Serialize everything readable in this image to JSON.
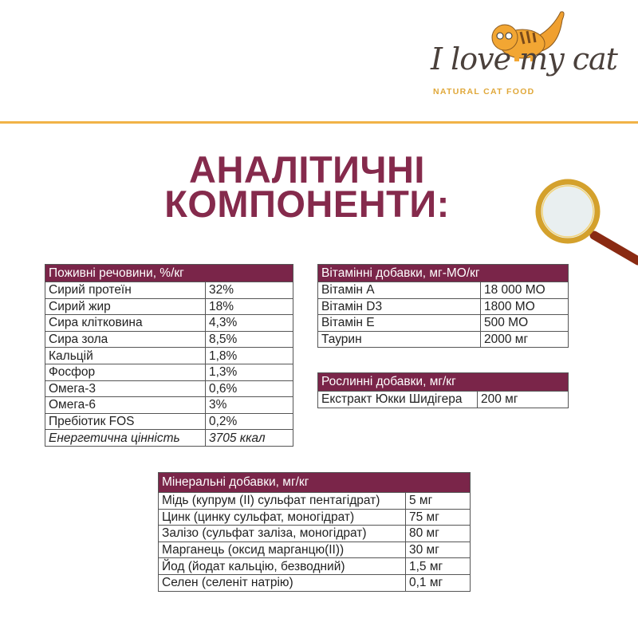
{
  "brand": {
    "name": "I love my cat",
    "tagline": "NATURAL CAT FOOD",
    "accent": "#f1b347"
  },
  "title": {
    "line1": "АНАЛІТИЧНІ",
    "line2": "КОМПОНЕНТИ:",
    "color": "#852a4c"
  },
  "header_color": "#7a2549",
  "nutrients": {
    "header": "Поживні речовини, %/кг",
    "rows": [
      [
        "Сирий протеїн",
        "32%"
      ],
      [
        "Сирий жир",
        "18%"
      ],
      [
        "Сира клітковина",
        "4,3%"
      ],
      [
        "Сира зола",
        "8,5%"
      ],
      [
        "Кальцій",
        "1,8%"
      ],
      [
        "Фосфор",
        "1,3%"
      ],
      [
        "Омега-3",
        "0,6%"
      ],
      [
        "Омега-6",
        "3%"
      ],
      [
        "Пребіотик FOS",
        "0,2%"
      ],
      [
        "Енергетична цінність",
        "3705 ккал"
      ]
    ]
  },
  "vitamins": {
    "header": "Вітамінні добавки, мг-МО/кг",
    "rows": [
      [
        "Вітамін A",
        "18 000 МО"
      ],
      [
        "Вітамін D3",
        "1800 МО"
      ],
      [
        "Вітамін E",
        "500 МО"
      ],
      [
        "Таурин",
        "2000 мг"
      ]
    ]
  },
  "plants": {
    "header": "Рослинні добавки, мг/кг",
    "rows": [
      [
        "Екстракт Юкки Шидігера",
        "200 мг"
      ]
    ]
  },
  "minerals": {
    "header": "Мінеральні добавки, мг/кг",
    "rows": [
      [
        "Мідь (купрум (II) сульфат пентагідрат)",
        "5 мг"
      ],
      [
        "Цинк (цинку сульфат, моногідрат)",
        "75 мг"
      ],
      [
        "Залізо (сульфат заліза, моногідрат)",
        "80 мг"
      ],
      [
        "Марганець (оксид марганцю(II))",
        "30 мг"
      ],
      [
        "Йод (йодат кальцію, безводний)",
        "1,5 мг"
      ],
      [
        "Селен (селеніт натрію)",
        "0,1 мг"
      ]
    ]
  }
}
